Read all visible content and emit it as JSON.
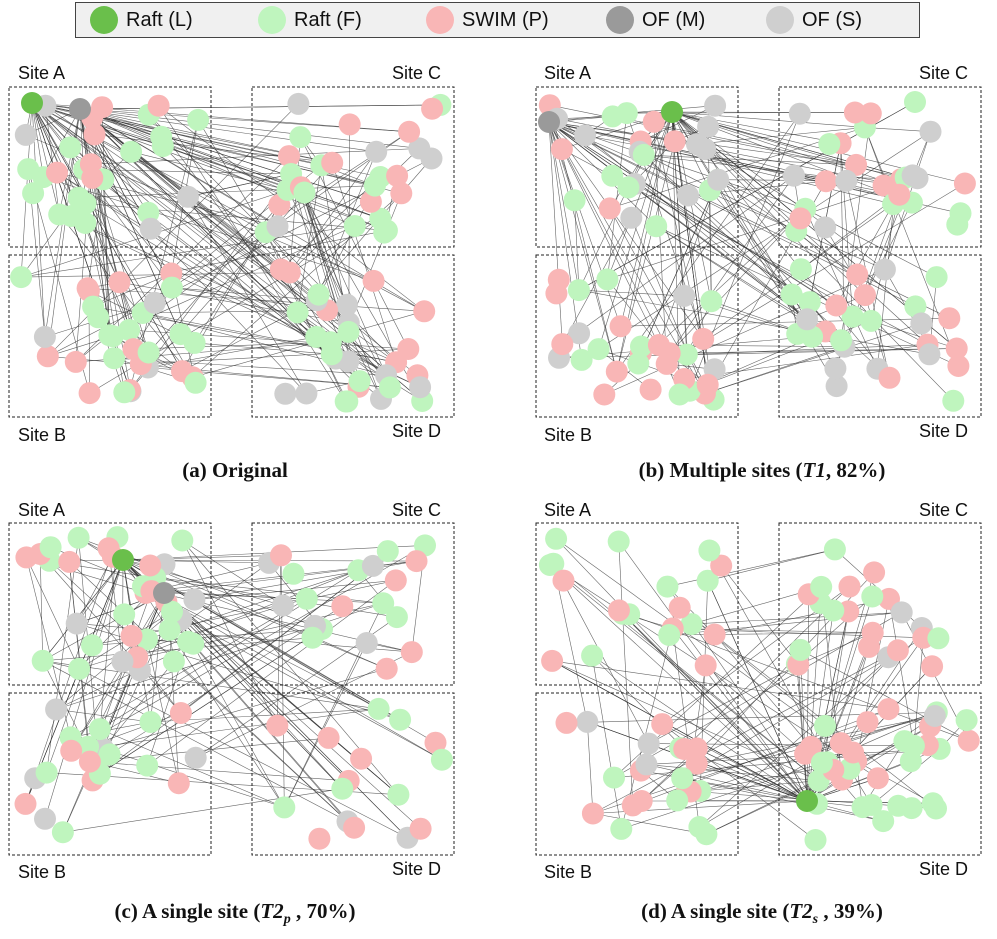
{
  "legend": [
    {
      "label": "Raft (L)",
      "color": "#6abf4b"
    },
    {
      "label": "Raft (F)",
      "color": "#bff5be"
    },
    {
      "label": "SWIM (P)",
      "color": "#f9b6b6"
    },
    {
      "label": "OF (M)",
      "color": "#9a9a9a"
    },
    {
      "label": "OF (S)",
      "color": "#cfcfcf"
    }
  ],
  "sites": {
    "a": "Site A",
    "b": "Site B",
    "c": "Site C",
    "d": "Site D"
  },
  "panels": [
    {
      "id": "a",
      "prefix": "(a) Original",
      "italic": "",
      "sub": "",
      "suffix": "",
      "distribution": {
        "A": 28,
        "B": 30,
        "C": 28,
        "D": 30
      },
      "edge_density": 220
    },
    {
      "id": "b",
      "prefix": "(b) Multiple sites (",
      "italic": "T1",
      "sub": "",
      "suffix": ",  82%)",
      "distribution": {
        "A": 26,
        "B": 30,
        "C": 28,
        "D": 28
      },
      "edge_density": 200
    },
    {
      "id": "c",
      "prefix": "(c) A single site (",
      "italic": "T2",
      "sub": "p",
      "suffix": " , 70%)",
      "distribution": {
        "A": 34,
        "B": 22,
        "C": 20,
        "D": 16
      },
      "edge_density": 170
    },
    {
      "id": "d",
      "prefix": "(d) A single site (",
      "italic": "T2",
      "sub": "s",
      "suffix": " , 39%)",
      "distribution": {
        "A": 20,
        "B": 22,
        "C": 22,
        "D": 34
      },
      "edge_density": 150
    }
  ]
}
